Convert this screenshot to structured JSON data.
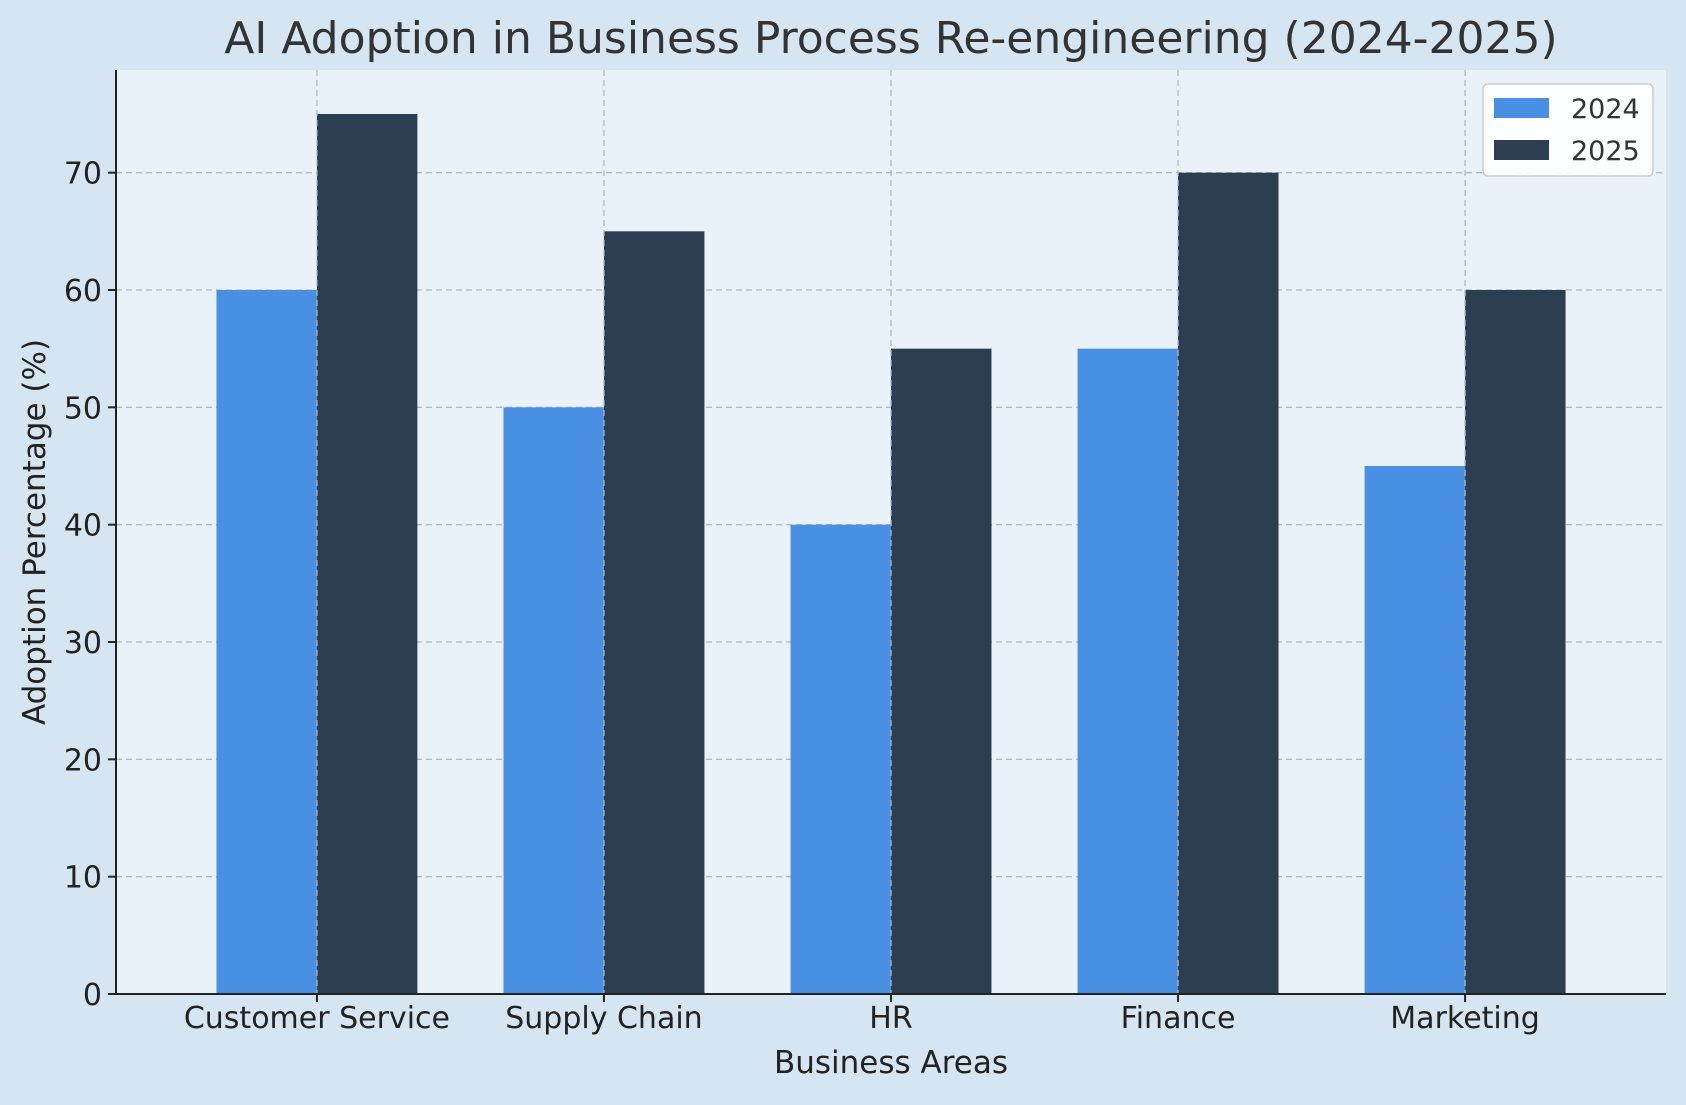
{
  "chart_data": {
    "type": "bar",
    "title": "AI Adoption in Business Process Re-engineering (2024-2025)",
    "xlabel": "Business Areas",
    "ylabel": "Adoption Percentage (%)",
    "categories": [
      "Customer Service",
      "Supply Chain",
      "HR",
      "Finance",
      "Marketing"
    ],
    "series": [
      {
        "name": "2024",
        "values": [
          60,
          50,
          40,
          55,
          45
        ],
        "color": "#4a90e2"
      },
      {
        "name": "2025",
        "values": [
          75,
          65,
          55,
          70,
          60
        ],
        "color": "#2c3e50"
      }
    ],
    "ylim": [
      0,
      78.75
    ],
    "yticks": [
      0,
      10,
      20,
      30,
      40,
      50,
      60,
      70
    ],
    "grid": true,
    "legend": "top-right",
    "colors": {
      "figure_background": "#d5e6f2",
      "plot_background": "#e9f1f9",
      "text": "#333333",
      "grid": "#b0b8c4"
    }
  }
}
